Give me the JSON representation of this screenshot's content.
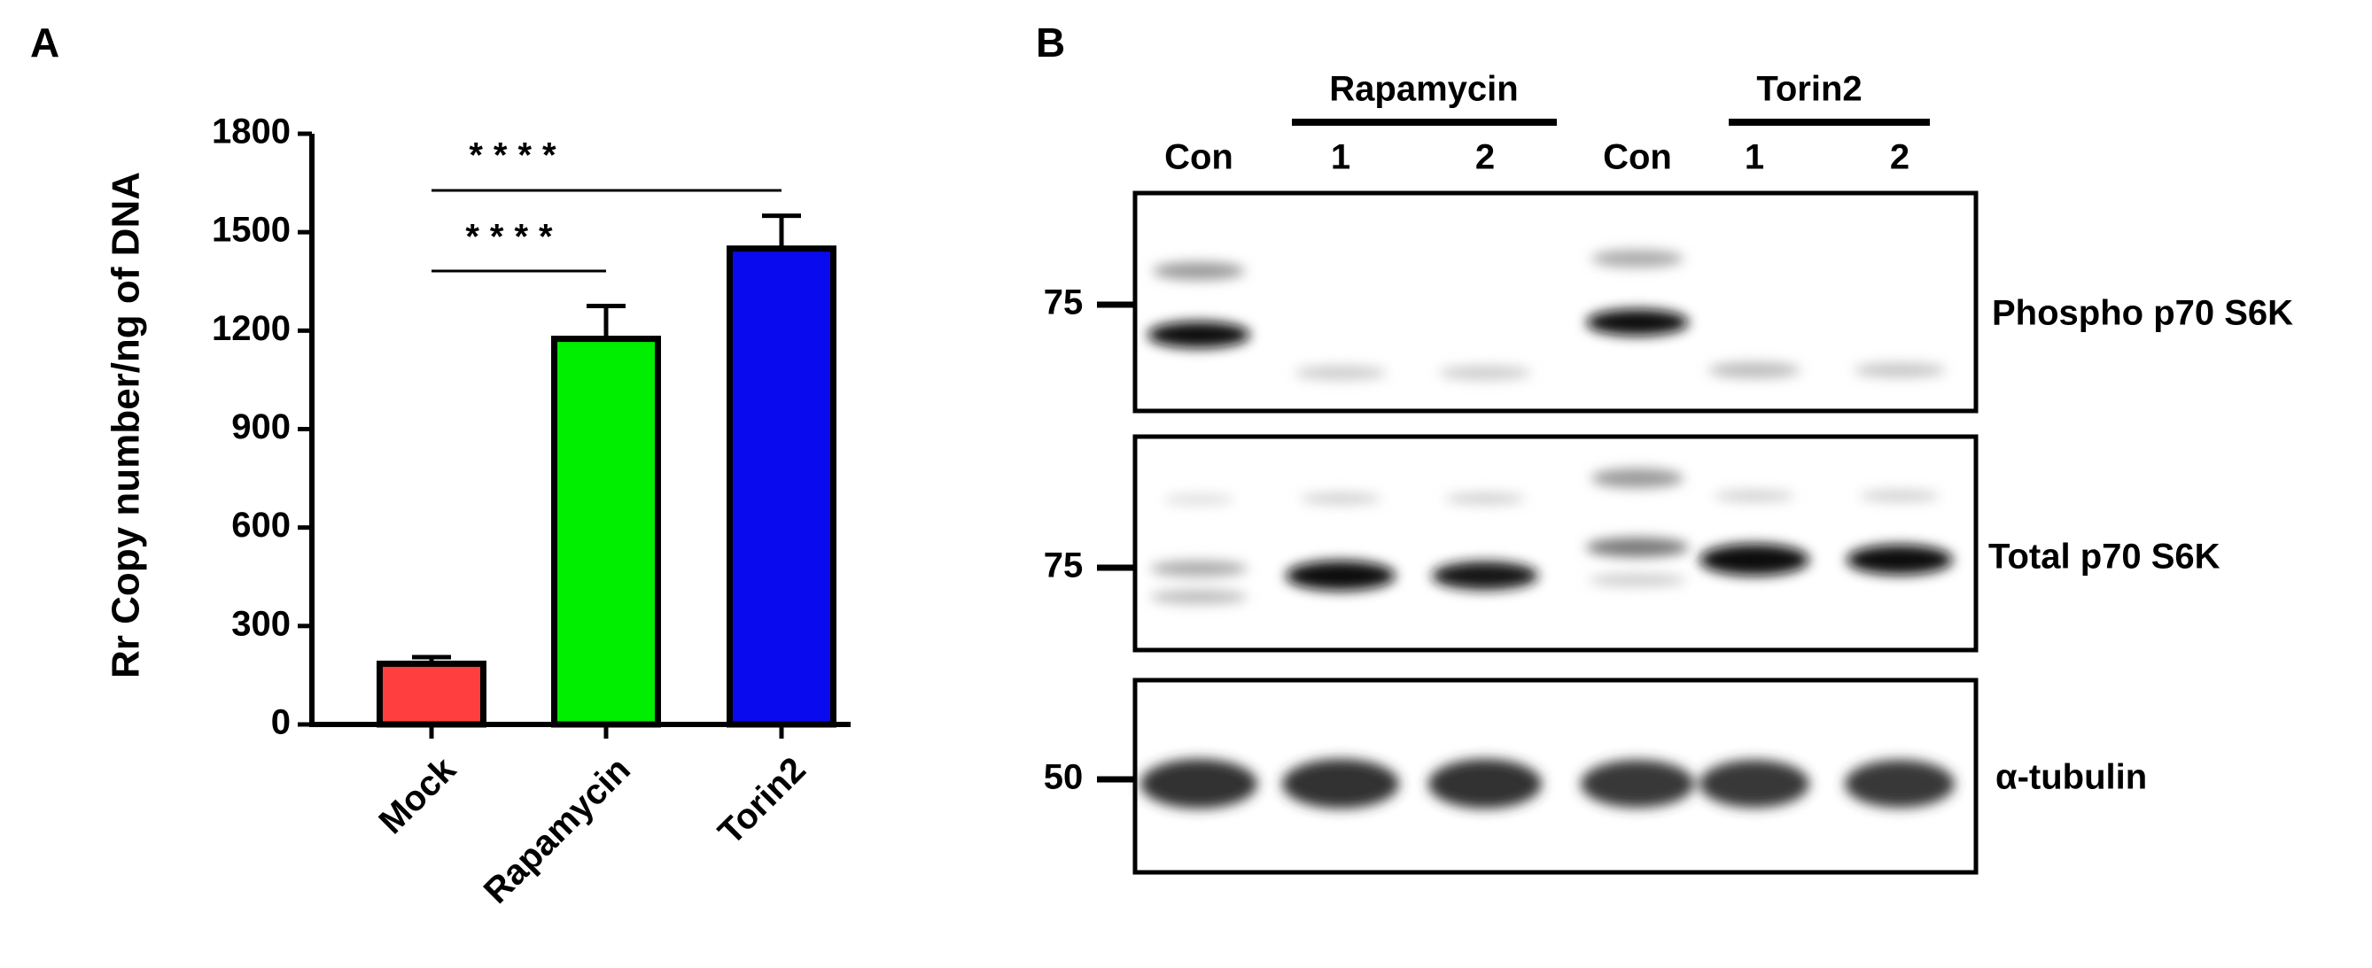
{
  "panel_labels": [
    "A",
    "B"
  ],
  "chart_data": {
    "type": "bar",
    "ylabel": "Rr Copy number/ng of DNA",
    "categories": [
      "Mock",
      "Rapamycin",
      "Torin2"
    ],
    "values": [
      185,
      1175,
      1450
    ],
    "errors": [
      20,
      100,
      100
    ],
    "colors": [
      "#ff3f3f",
      "#00ee00",
      "#0a0aef"
    ],
    "ylim": [
      0,
      1800
    ],
    "yticks": [
      0,
      300,
      600,
      900,
      1200,
      1500,
      1800
    ],
    "annotations": [
      "****",
      "****"
    ]
  },
  "blot": {
    "lanes": [
      "Con",
      "1",
      "2",
      "Con",
      "1",
      "2"
    ],
    "groups": [
      "Rapamycin",
      "Torin2"
    ],
    "panels": [
      {
        "marker": "75",
        "label": "Phospho p70 S6K"
      },
      {
        "marker": "75",
        "label": "Total p70 S6K"
      },
      {
        "marker": "50",
        "label": "α-tubulin"
      }
    ]
  }
}
